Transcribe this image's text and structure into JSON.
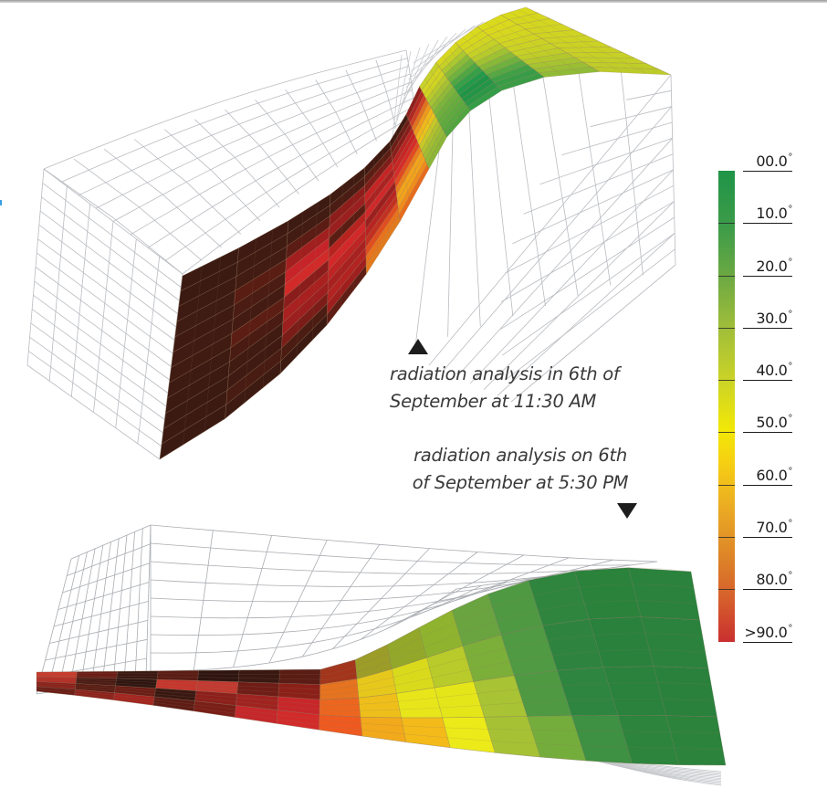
{
  "figure": {
    "captions": {
      "top": {
        "line1": "radiation analysis in 6th of",
        "line2": "September at 11:30 AM",
        "pointer": "up-triangle"
      },
      "bottom": {
        "line1": "radiation analysis on 6th",
        "line2": "of September at 5:30 PM",
        "pointer": "down-triangle"
      }
    },
    "legend": {
      "unit": "°",
      "ticks": [
        {
          "label": "00.0",
          "pos": 0.0
        },
        {
          "label": "10.0",
          "pos": 0.111
        },
        {
          "label": "20.0",
          "pos": 0.222
        },
        {
          "label": "30.0",
          "pos": 0.333
        },
        {
          "label": "40.0",
          "pos": 0.444
        },
        {
          "label": "50.0",
          "pos": 0.555
        },
        {
          "label": "60.0",
          "pos": 0.666
        },
        {
          "label": "70.0",
          "pos": 0.777
        },
        {
          "label": "80.0",
          "pos": 0.888
        },
        {
          "label": ">90.0",
          "pos": 1.0
        }
      ],
      "colors": {
        "0": "#1f9447",
        "10": "#3d9c49",
        "20": "#6aa843",
        "30": "#9ebd3a",
        "40": "#c9d228",
        "50": "#f2e807",
        "60": "#f6cf13",
        "70": "#eaa924",
        "80": "#dd8428",
        "90": "#c9302f"
      }
    },
    "surfaces": {
      "top_1130am": {
        "cells_columns_left_to_right": [
          [
            "#3b1a12",
            "#3b1a12",
            "#3d1a12",
            "#3e1b13",
            "#3e1a12",
            "#3f1b13",
            "#401b12",
            "#3d1a12",
            "#3c1a12",
            "#3b1a12",
            "#3c1a12",
            "#3b1a12"
          ],
          [
            "#3e1a12",
            "#3f1b12",
            "#421b12",
            "#5a1d14",
            "#4a1c13",
            "#441b12",
            "#5c1e14",
            "#4a1b12",
            "#401b12",
            "#3f1a12",
            "#481c12",
            "#3d1a12"
          ],
          [
            "#3d1a12",
            "#421b12",
            "#5a1c14",
            "#a21f1f",
            "#c7242a",
            "#d12a29",
            "#8a1d1c",
            "#a8201f",
            "#9c1e1e",
            "#7a1d19",
            "#4a1c12",
            "#3c1a12"
          ],
          [
            "#401b12",
            "#4a1c13",
            "#8d1d1b",
            "#9b1f1f",
            "#5a1d14",
            "#b8221f",
            "#d3282a",
            "#bd2423",
            "#a82121",
            "#b22322",
            "#9f1f1e",
            "#5e1d15"
          ],
          [
            "#3f1a12",
            "#5c1e14",
            "#7e1d19",
            "#c62424",
            "#aa2222",
            "#d0282a",
            "#9a1f1e",
            "#b72422",
            "#c23021",
            "#e04e1f",
            "#e8731c",
            "#e27a1d"
          ],
          [
            "#401b12",
            "#6b1d16",
            "#891d1b",
            "#b82322",
            "#c62524",
            "#d62c29",
            "#e24a1f",
            "#eb7f1e",
            "#f2a51b",
            "#f3a21b",
            "#f08c1b",
            "#e76b1d"
          ],
          [
            "#8e1f1d",
            "#b22621",
            "#d04024",
            "#e3721e",
            "#ef9a1c",
            "#f2b71a",
            "#e8c31b",
            "#c8c928",
            "#b0c22d",
            "#a0be31",
            "#93ba35",
            "#8ab636"
          ],
          [
            "#c6d228",
            "#d4d522",
            "#cfd421",
            "#b7ca2b",
            "#a5c232",
            "#8fba36",
            "#7ab53b",
            "#6cb03c",
            "#64ad3d",
            "#5dab3e",
            "#56a83f",
            "#4fa640"
          ],
          [
            "#d6d81f",
            "#c6d126",
            "#aac82f",
            "#88bb38",
            "#6db33e",
            "#4fa744",
            "#35a047",
            "#239a49",
            "#1f9447",
            "#239547",
            "#2a9847",
            "#349d47"
          ],
          [
            "#d9da1d",
            "#d6d81e",
            "#cfd522",
            "#c4d126",
            "#b5cb2c",
            "#9fc232",
            "#87b939",
            "#6fb13e",
            "#55a843",
            "#3fa046",
            "#369d46",
            "#3a9d46"
          ],
          [
            "#dadb1c",
            "#dad91d",
            "#d6d71f",
            "#d2d620",
            "#cfd422",
            "#cbd224",
            "#c6d126",
            "#bfcd28",
            "#b3c82c",
            "#a6c331",
            "#9abe34",
            "#90bb36"
          ],
          [
            "#d8d91d",
            "#d5d71f",
            "#d3d620",
            "#d1d521",
            "#cfd422",
            "#cdd323",
            "#cbd224",
            "#c9d125",
            "#c6d026",
            "#c3cf27",
            "#c0cd28",
            "#bdcb29"
          ]
        ]
      },
      "bottom_530pm": {
        "cells_columns_left_to_right": [
          [
            "#c83a2c",
            "#b52e26",
            "#8a2019",
            "#6b1b15"
          ],
          [
            "#6a1c15",
            "#4a1a13",
            "#5a1c14",
            "#8d211b"
          ],
          [
            "#3a1812",
            "#2e1510",
            "#6b1d15",
            "#a42620"
          ],
          [
            "#5a1c14",
            "#c7362d",
            "#3a1812",
            "#5e1c15"
          ],
          [
            "#2f1510",
            "#c23a31",
            "#8d201b",
            "#7a1e18"
          ],
          [
            "#3a1812",
            "#6f1d16",
            "#a02320",
            "#c6272a"
          ],
          [
            "#5a1c14",
            "#8b2019",
            "#c8272a",
            "#d22b2a"
          ],
          [
            "#a2351c",
            "#e5731f",
            "#ec661f",
            "#ee5a20"
          ],
          [
            "#9c9c29",
            "#e6c81c",
            "#eebf1b",
            "#f2a91b"
          ],
          [
            "#93a82b",
            "#dada1c",
            "#e8e61a",
            "#f3ba1a"
          ],
          [
            "#8fb32f",
            "#b8cb2a",
            "#e5e61a",
            "#ecea19"
          ],
          [
            "#6aa440",
            "#7cae3a",
            "#a8c333",
            "#a6c234"
          ],
          [
            "#4f9943",
            "#4f9a43",
            "#4f9943",
            "#74ad3c"
          ],
          [
            "#2f853e",
            "#2e843e",
            "#2e853f",
            "#3e9042"
          ],
          [
            "#2a823b",
            "#29813c",
            "#2a823c",
            "#2d843c"
          ],
          [
            "#2b823c",
            "#2b823c",
            "#2a813c",
            "#2c833c"
          ]
        ]
      }
    }
  }
}
